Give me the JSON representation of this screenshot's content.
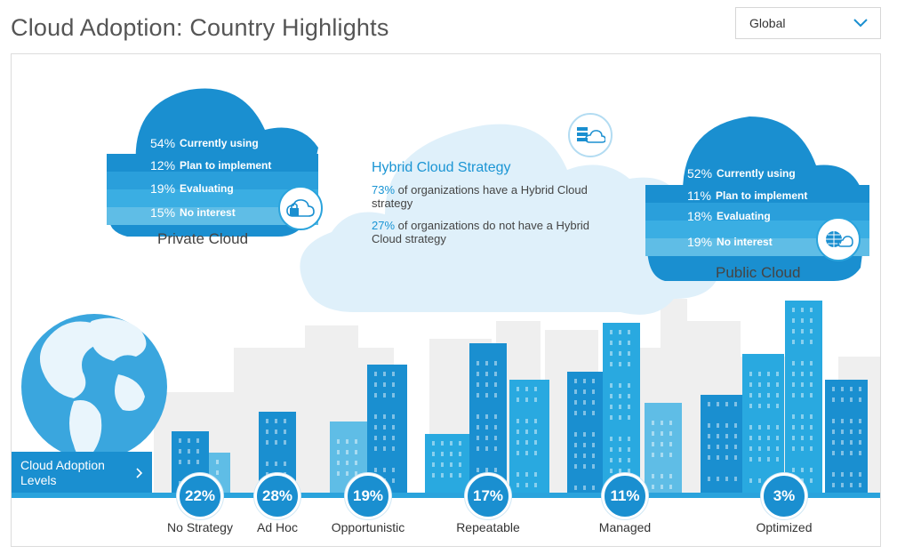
{
  "header": {
    "title": "Cloud Adoption: Country Highlights",
    "region_select": {
      "value": "Global"
    }
  },
  "private_cloud": {
    "label": "Private Cloud",
    "rows": [
      {
        "pct": "54%",
        "text": "Currently using"
      },
      {
        "pct": "12%",
        "text": "Plan to implement"
      },
      {
        "pct": "19%",
        "text": "Evaluating"
      },
      {
        "pct": "15%",
        "text": "No interest"
      }
    ],
    "icon": "lock-cloud-icon"
  },
  "hybrid_cloud": {
    "title": "Hybrid Cloud Strategy",
    "lines": [
      {
        "pct": "73%",
        "text": "of organizations have a Hybrid Cloud strategy"
      },
      {
        "pct": "27%",
        "text": "of organizations do not have a Hybrid Cloud strategy"
      }
    ],
    "icon": "server-cloud-icon"
  },
  "public_cloud": {
    "label": "Public Cloud",
    "rows": [
      {
        "pct": "52%",
        "text": "Currently using"
      },
      {
        "pct": "11%",
        "text": "Plan to implement"
      },
      {
        "pct": "18%",
        "text": "Evaluating"
      },
      {
        "pct": "19%",
        "text": "No interest"
      }
    ],
    "icon": "globe-cloud-icon"
  },
  "levels": {
    "button_label": "Cloud Adoption Levels",
    "items": [
      {
        "pct": "22%",
        "name": "No Strategy"
      },
      {
        "pct": "28%",
        "name": "Ad Hoc"
      },
      {
        "pct": "19%",
        "name": "Opportunistic"
      },
      {
        "pct": "17%",
        "name": "Repeatable"
      },
      {
        "pct": "11%",
        "name": "Managed"
      },
      {
        "pct": "3%",
        "name": "Optimized"
      }
    ]
  },
  "colors": {
    "accent": "#1a8fd0",
    "light": "#29a9e0",
    "pale": "#dff0fa",
    "text_blue": "#1b95d4"
  }
}
